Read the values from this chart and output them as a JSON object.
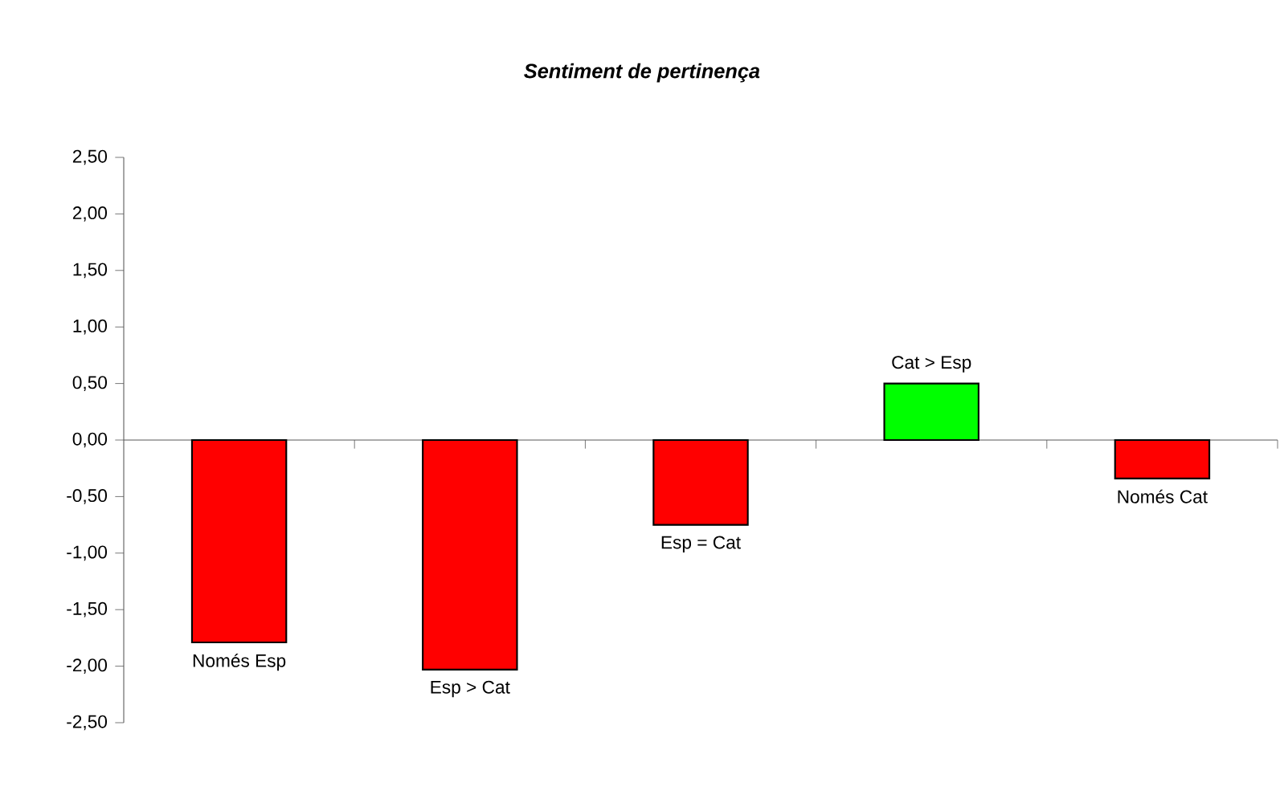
{
  "chart_data": {
    "type": "bar",
    "title": "Sentiment de pertinença",
    "categories": [
      "Només Esp",
      "Esp > Cat",
      "Esp = Cat",
      "Cat > Esp",
      "Només Cat"
    ],
    "values": [
      -1.79,
      -2.03,
      -0.75,
      0.5,
      -0.34
    ],
    "colors": [
      "#ff0000",
      "#ff0000",
      "#ff0000",
      "#00ff00",
      "#ff0000"
    ],
    "ylim": [
      -2.5,
      2.5
    ],
    "yticks": [
      {
        "value": -2.5,
        "label": "-2,50"
      },
      {
        "value": -2.0,
        "label": "-2,00"
      },
      {
        "value": -1.5,
        "label": "-1,50"
      },
      {
        "value": -1.0,
        "label": "-1,00"
      },
      {
        "value": -0.5,
        "label": "-0,50"
      },
      {
        "value": 0,
        "label": "0,00"
      },
      {
        "value": 0.5,
        "label": "0,50"
      },
      {
        "value": 1.0,
        "label": "1,00"
      },
      {
        "value": 1.5,
        "label": "1,50"
      },
      {
        "value": 2.0,
        "label": "2,00"
      },
      {
        "value": 2.5,
        "label": "2,50"
      }
    ],
    "relative": false
  }
}
